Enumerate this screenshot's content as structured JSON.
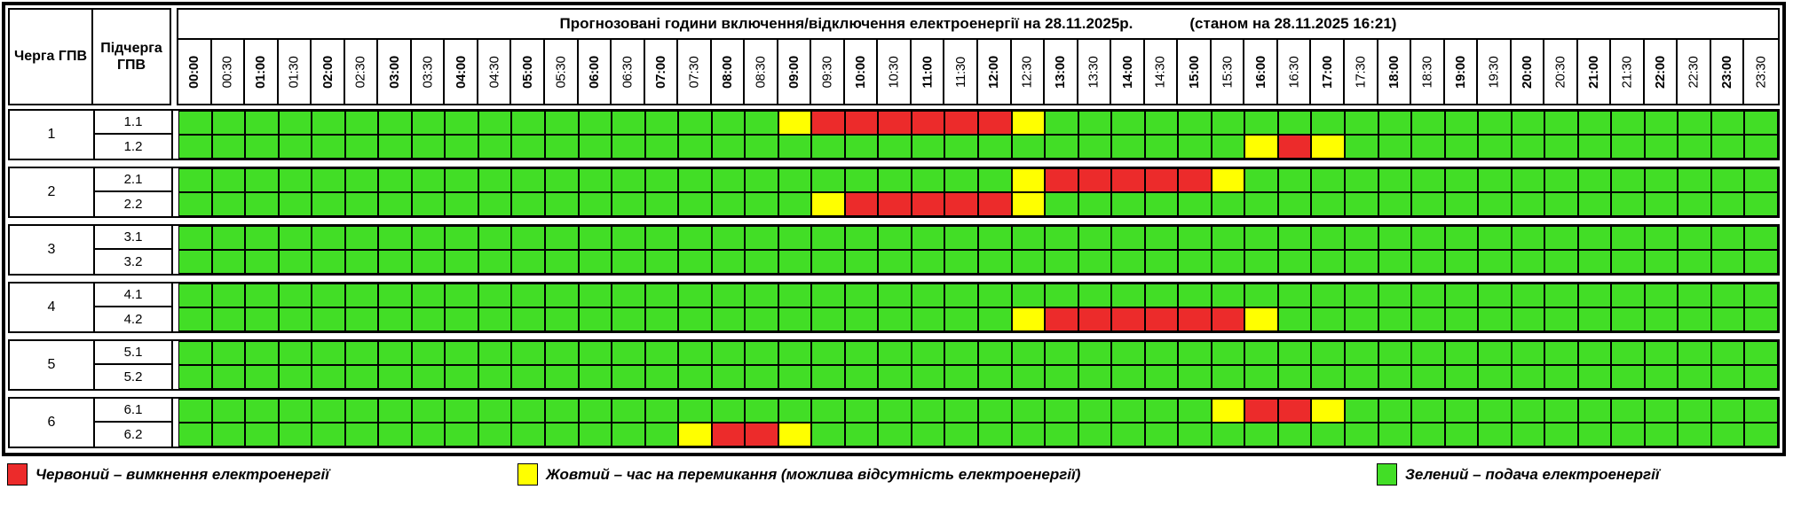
{
  "title": {
    "main": "Прогнозовані години включення/відключення електроенергії на 28.11.2025р.",
    "status": "(станом на 28.11.2025 16:21)"
  },
  "header": {
    "queue_col": "Черга ГПВ",
    "subqueue_col": "Підчерга ГПВ"
  },
  "colors": {
    "power_on": "#42DE26",
    "power_off": "#EC2B2B",
    "switching": "#FFFF00",
    "grid": "#000000"
  },
  "legend": [
    {
      "state": "power_off",
      "label": "Червоний – вимкнення електроенергії"
    },
    {
      "state": "switching",
      "label": "Жовтий – час на перемикання (можлива відсутність електроенергії)"
    },
    {
      "state": "power_on",
      "label": "Зелений – подача електроенергії"
    }
  ],
  "chart_data": {
    "type": "heatmap",
    "title": "Прогнозовані години включення/відключення електроенергії на 28.11.2025р.",
    "status_note": "станом на 28.11.2025 16:21",
    "x": [
      "00:00",
      "00:30",
      "01:00",
      "01:30",
      "02:00",
      "02:30",
      "03:00",
      "03:30",
      "04:00",
      "04:30",
      "05:00",
      "05:30",
      "06:00",
      "06:30",
      "07:00",
      "07:30",
      "08:00",
      "08:30",
      "09:00",
      "09:30",
      "10:00",
      "10:30",
      "11:00",
      "11:30",
      "12:00",
      "12:30",
      "13:00",
      "13:30",
      "14:00",
      "14:30",
      "15:00",
      "15:30",
      "16:00",
      "16:30",
      "17:00",
      "17:30",
      "18:00",
      "18:30",
      "19:00",
      "19:30",
      "20:00",
      "20:30",
      "21:00",
      "21:30",
      "22:00",
      "22:30",
      "23:00",
      "23:30"
    ],
    "state_codes": {
      "G": "подача електроенергії",
      "Y": "час на перемикання (можлива відсутність електроенергії)",
      "R": "вимкнення електроенергії"
    },
    "blocks": [
      {
        "queue": "1",
        "rows": [
          {
            "sub": "1.1",
            "segments": [
              [
                "G",
                18
              ],
              [
                "Y",
                1
              ],
              [
                "R",
                6
              ],
              [
                "Y",
                1
              ],
              [
                "G",
                22
              ]
            ]
          },
          {
            "sub": "1.2",
            "segments": [
              [
                "G",
                32
              ],
              [
                "Y",
                1
              ],
              [
                "R",
                1
              ],
              [
                "Y",
                1
              ],
              [
                "G",
                13
              ]
            ]
          }
        ]
      },
      {
        "queue": "2",
        "rows": [
          {
            "sub": "2.1",
            "segments": [
              [
                "G",
                25
              ],
              [
                "Y",
                1
              ],
              [
                "R",
                5
              ],
              [
                "Y",
                1
              ],
              [
                "G",
                16
              ]
            ]
          },
          {
            "sub": "2.2",
            "segments": [
              [
                "G",
                19
              ],
              [
                "Y",
                1
              ],
              [
                "R",
                5
              ],
              [
                "Y",
                1
              ],
              [
                "G",
                22
              ]
            ]
          }
        ]
      },
      {
        "queue": "3",
        "rows": [
          {
            "sub": "3.1",
            "segments": [
              [
                "G",
                48
              ]
            ]
          },
          {
            "sub": "3.2",
            "segments": [
              [
                "G",
                48
              ]
            ]
          }
        ]
      },
      {
        "queue": "4",
        "rows": [
          {
            "sub": "4.1",
            "segments": [
              [
                "G",
                48
              ]
            ]
          },
          {
            "sub": "4.2",
            "segments": [
              [
                "G",
                25
              ],
              [
                "Y",
                1
              ],
              [
                "R",
                6
              ],
              [
                "Y",
                1
              ],
              [
                "G",
                15
              ]
            ]
          }
        ]
      },
      {
        "queue": "5",
        "rows": [
          {
            "sub": "5.1",
            "segments": [
              [
                "G",
                48
              ]
            ]
          },
          {
            "sub": "5.2",
            "segments": [
              [
                "G",
                48
              ]
            ]
          }
        ]
      },
      {
        "queue": "6",
        "rows": [
          {
            "sub": "6.1",
            "segments": [
              [
                "G",
                31
              ],
              [
                "Y",
                1
              ],
              [
                "R",
                2
              ],
              [
                "Y",
                1
              ],
              [
                "G",
                13
              ]
            ]
          },
          {
            "sub": "6.2",
            "segments": [
              [
                "G",
                15
              ],
              [
                "Y",
                1
              ],
              [
                "R",
                2
              ],
              [
                "Y",
                1
              ],
              [
                "G",
                29
              ]
            ]
          }
        ]
      }
    ]
  }
}
